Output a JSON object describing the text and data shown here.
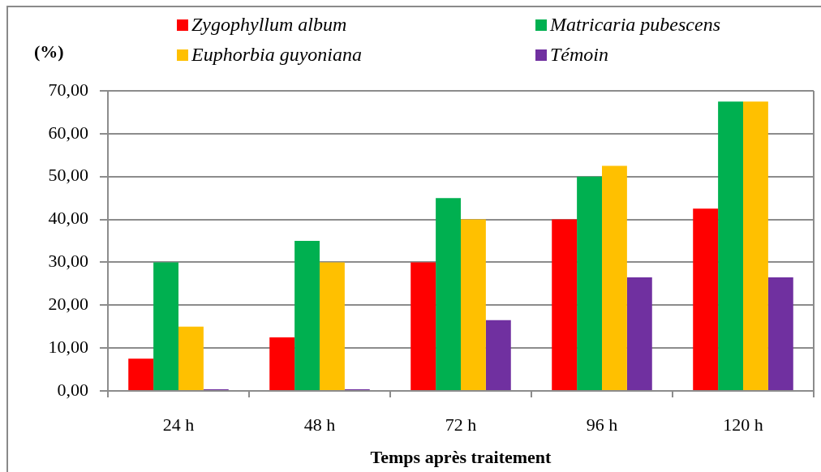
{
  "chart_data": {
    "type": "bar",
    "xlabel": "Temps après traitement",
    "ylabel": "(%)",
    "categories": [
      "24 h",
      "48 h",
      "72 h",
      "96 h",
      "120 h"
    ],
    "series": [
      {
        "name": "Zygophyllum album",
        "color": "#ff0000",
        "values": [
          7.5,
          12.5,
          30,
          40,
          42.5
        ]
      },
      {
        "name": "Matricaria pubescens",
        "color": "#00b050",
        "values": [
          30,
          35,
          45,
          50,
          67.5
        ]
      },
      {
        "name": "Euphorbia guyoniana",
        "color": "#ffc000",
        "values": [
          15,
          30,
          40,
          52.5,
          67.5
        ]
      },
      {
        "name": "Témoin",
        "color": "#7030a0",
        "values": [
          0,
          0,
          16.5,
          26.5,
          26.5
        ]
      }
    ],
    "ylim": [
      0,
      70
    ],
    "yticks": [
      {
        "value": 0,
        "label": "0,00"
      },
      {
        "value": 10,
        "label": "10,00"
      },
      {
        "value": 20,
        "label": "20,00"
      },
      {
        "value": 30,
        "label": "30,00"
      },
      {
        "value": 40,
        "label": "40,00"
      },
      {
        "value": 50,
        "label": "50,00"
      },
      {
        "value": 60,
        "label": "60,00"
      },
      {
        "value": 70,
        "label": "70,00"
      }
    ],
    "grid": "y",
    "legend": "top"
  }
}
